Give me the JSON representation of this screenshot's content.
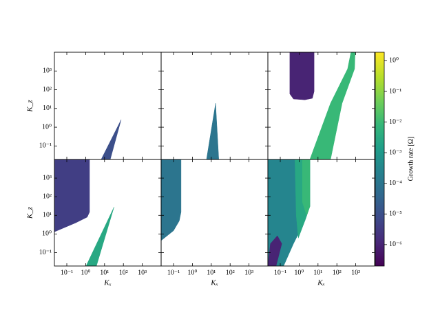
{
  "chart_data": {
    "type": "contour",
    "log_x": true,
    "log_y": true,
    "xlabel": "Kₓ",
    "ylabel": "K_z",
    "xlim": [
      0.022,
      10000
    ],
    "ylim": [
      0.019,
      10000
    ],
    "xticks": [
      {
        "value": 0.1,
        "label": "10⁻¹"
      },
      {
        "value": 1,
        "label": "10⁰"
      },
      {
        "value": 10,
        "label": "10¹"
      },
      {
        "value": 100,
        "label": "10²"
      },
      {
        "value": 1000,
        "label": "10³"
      }
    ],
    "yticks": [
      {
        "value": 0.1,
        "label": "10⁻¹"
      },
      {
        "value": 1,
        "label": "10⁰"
      },
      {
        "value": 10,
        "label": "10¹"
      },
      {
        "value": 100,
        "label": "10²"
      },
      {
        "value": 1000,
        "label": "10³"
      }
    ],
    "colorbar": {
      "label": "Growth rate [Ω]",
      "colormap": "viridis",
      "log": true,
      "lim": [
        2e-07,
        1.9
      ],
      "ticks": [
        {
          "value": 1,
          "label": "10⁰"
        },
        {
          "value": 0.1,
          "label": "10⁻¹"
        },
        {
          "value": 0.01,
          "label": "10⁻²"
        },
        {
          "value": 0.001,
          "label": "10⁻³"
        },
        {
          "value": 0.0001,
          "label": "10⁻⁴"
        },
        {
          "value": 1e-05,
          "label": "10⁻⁵"
        },
        {
          "value": 1e-06,
          "label": "10⁻⁶"
        }
      ]
    },
    "panels": [
      {
        "regions": [
          {
            "value": 1e-05,
            "kx": [
              6.6,
              20,
              76,
              6.6
            ],
            "kz": [
              0.019,
              0.019,
              2.5,
              0.019
            ]
          }
        ]
      },
      {
        "regions": [
          {
            "value": 0.0001,
            "kx": [
              5.6,
              25,
              17,
              5.6
            ],
            "kz": [
              0.019,
              0.019,
              19,
              0.019
            ]
          }
        ]
      },
      {
        "regions": [
          {
            "value": 1e-06,
            "kx": [
              0.32,
              0.32,
              0.5,
              2,
              5,
              6.2,
              6.2
            ],
            "kz": [
              10000,
              60,
              32,
              29,
              35,
              80,
              10000
            ]
          },
          {
            "value": 0.01,
            "kx": [
              3.7,
              46,
              190,
              870,
              930,
              560,
              370,
              46
            ],
            "kz": [
              0.019,
              0.019,
              19,
              1300,
              10000,
              10000,
              1300,
              19
            ]
          }
        ]
      },
      {
        "regions": [
          {
            "value": 4e-06,
            "kx": [
              0.022,
              1.6,
              1.6,
              1.2,
              0.3,
              0.022
            ],
            "kz": [
              10000,
              10000,
              15,
              8,
              4,
              1.3
            ]
          },
          {
            "value": 0.003,
            "kx": [
              1.05,
              3.7,
              32,
              1.05
            ],
            "kz": [
              0.019,
              0.019,
              28,
              0.019
            ]
          }
        ]
      },
      {
        "regions": [
          {
            "value": 0.0001,
            "kx": [
              0.022,
              0.25,
              0.25,
              0.2,
              0.1,
              0.022
            ],
            "kz": [
              10000,
              10000,
              15,
              5,
              1.5,
              0.44
            ]
          }
        ]
      },
      {
        "regions": [
          {
            "value": 0.0003,
            "kx": [
              0.022,
              3.7,
              3.7,
              2,
              0.5,
              0.15,
              0.022
            ],
            "kz": [
              10000,
              10000,
              30,
              5,
              0.3,
              0.019,
              0.019
            ]
          },
          {
            "value": 0.003,
            "kx": [
              0.6,
              3.7,
              3.7,
              2,
              0.9,
              0.7
            ],
            "kz": [
              10000,
              10000,
              30,
              5,
              0.6,
              10
            ]
          },
          {
            "value": 0.01,
            "kx": [
              1.5,
              3.7,
              3.7,
              2.5,
              1.5
            ],
            "kz": [
              10000,
              10000,
              30,
              10,
              50
            ]
          },
          {
            "value": 1e-06,
            "kx": [
              0.022,
              0.03,
              0.07,
              0.12,
              0.06,
              0.022
            ],
            "kz": [
              0.019,
              0.3,
              0.8,
              0.3,
              0.019,
              0.019
            ]
          }
        ]
      }
    ]
  }
}
